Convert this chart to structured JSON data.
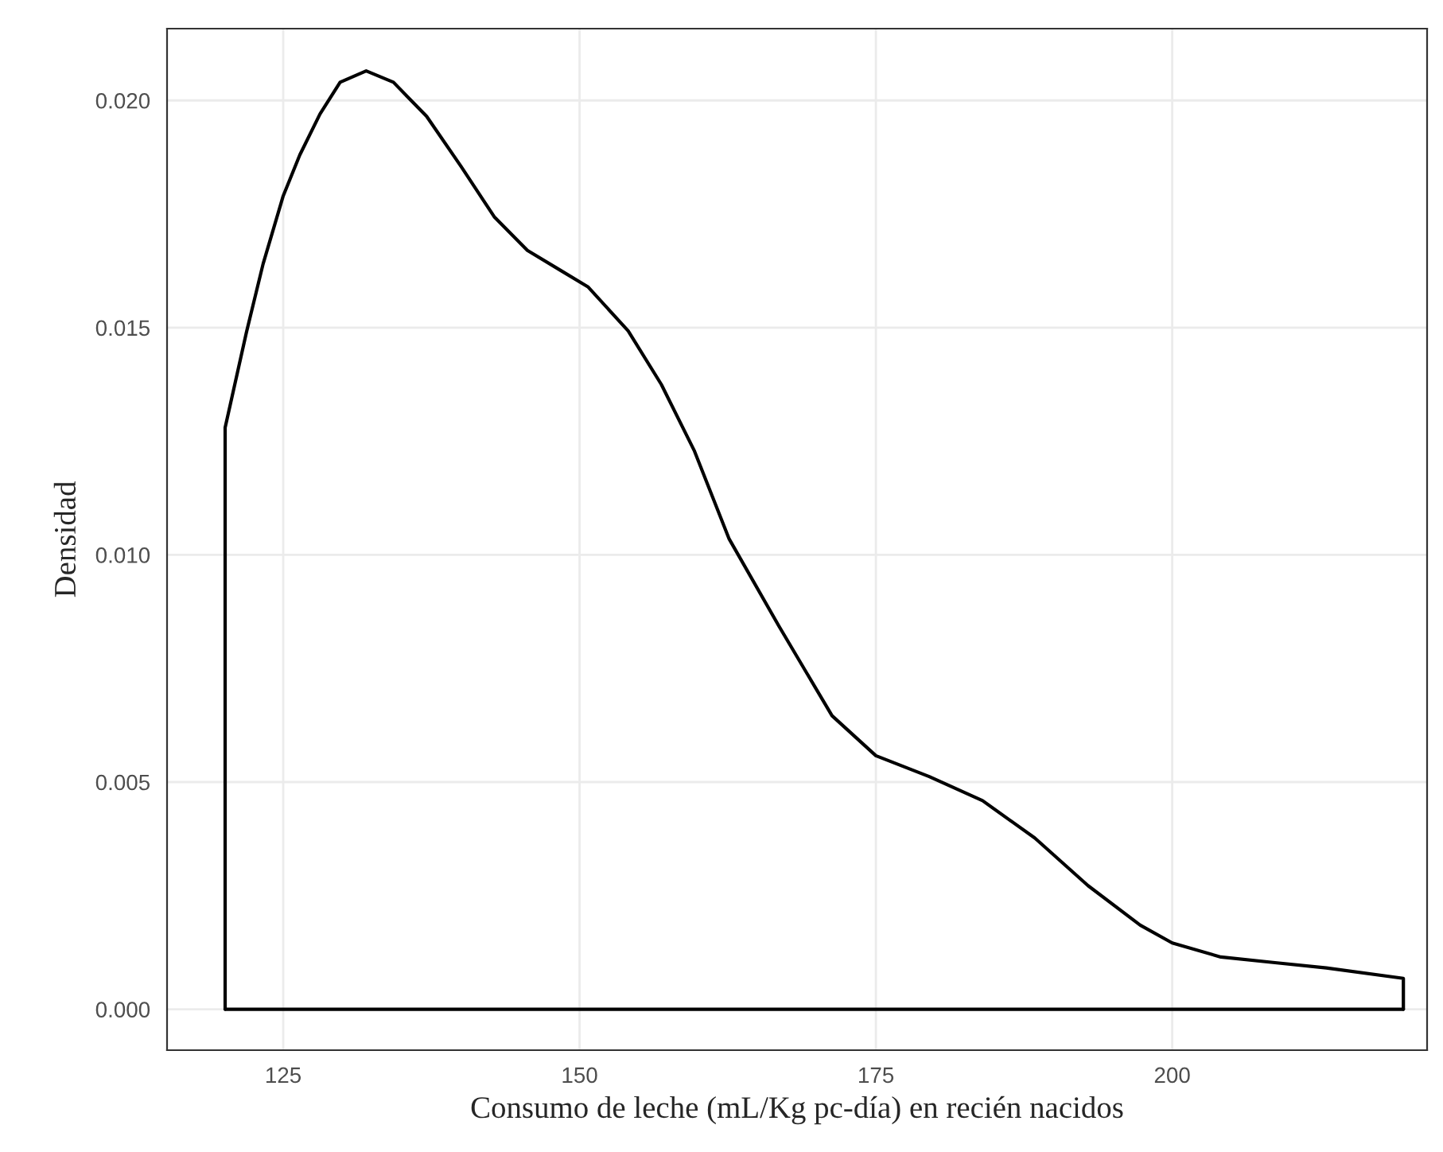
{
  "chart_data": {
    "type": "line",
    "xlabel": "Consumo de leche (mL/Kg pc-día) en recién nacidos",
    "ylabel": "Densidad",
    "series": [
      {
        "color": "#000000",
        "x": [
          120.1,
          120.1,
          121.9,
          123.3,
          125.0,
          126.4,
          128.1,
          129.8,
          132.0,
          134.3,
          137.1,
          140.0,
          142.8,
          145.6,
          148.4,
          150.7,
          154.1,
          156.9,
          159.7,
          162.6,
          166.8,
          171.3,
          175.0,
          179.5,
          184.0,
          188.4,
          192.9,
          197.3,
          200.0,
          204.1,
          208.5,
          213.0,
          219.5,
          219.5
        ],
        "values": [
          0.0,
          0.0128,
          0.0149,
          0.0164,
          0.0179,
          0.0188,
          0.0197,
          0.0204,
          0.02065,
          0.0204,
          0.01965,
          0.01855,
          0.01744,
          0.0167,
          0.01626,
          0.0159,
          0.01493,
          0.01375,
          0.01228,
          0.01036,
          0.00844,
          0.00646,
          0.00558,
          0.00512,
          0.00459,
          0.00377,
          0.00272,
          0.00185,
          0.00146,
          0.00115,
          0.00103,
          0.00091,
          0.00068,
          0.0
        ]
      },
      {
        "color": "#000000",
        "x": [
          120.1,
          219.5
        ],
        "values": [
          0.0,
          0.0
        ]
      }
    ],
    "xlim": [
      115.2,
      221.5
    ],
    "ylim": [
      -0.0009,
      0.02158
    ],
    "xticks": [
      125,
      150,
      175,
      200
    ],
    "yticks": [
      {
        "value": 0,
        "label": "0.000"
      },
      {
        "value": 0.005,
        "label": "0.005"
      },
      {
        "value": 0.01,
        "label": "0.010"
      },
      {
        "value": 0.015,
        "label": "0.015"
      },
      {
        "value": 0.02,
        "label": "0.020"
      }
    ],
    "grid": true,
    "marker": "none",
    "line_style": "solid"
  }
}
